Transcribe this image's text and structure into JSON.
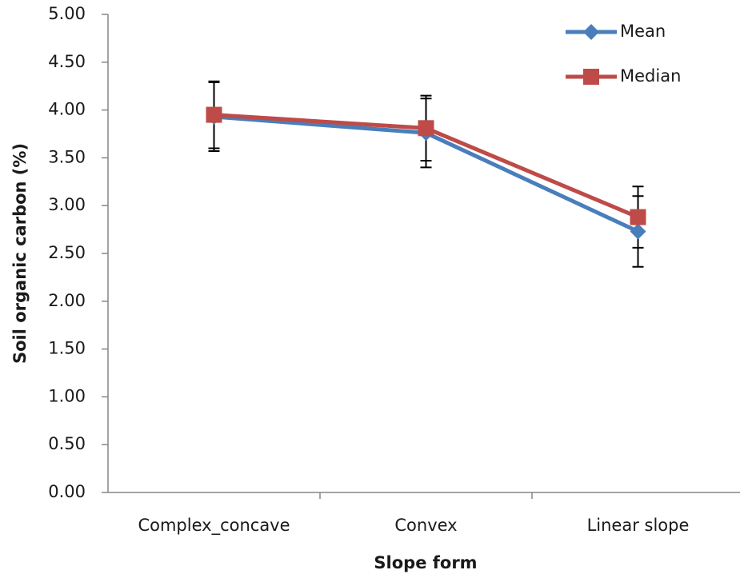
{
  "chart_data": {
    "type": "line",
    "x_label": "Slope form",
    "y_label": "Soil organic carbon (%)",
    "categories": [
      "Complex_concave",
      "Convex",
      "Linear slope"
    ],
    "series": [
      {
        "name": "Mean",
        "color": "#4a7ebb",
        "marker": "diamond",
        "values": [
          3.93,
          3.76,
          2.73
        ],
        "errors": [
          0.36,
          0.36,
          0.37
        ]
      },
      {
        "name": "Median",
        "color": "#be4b48",
        "marker": "square",
        "values": [
          3.95,
          3.81,
          2.88
        ],
        "errors": [
          0.35,
          0.34,
          0.32
        ]
      }
    ],
    "ylim": [
      0,
      5
    ],
    "yticks": [
      {
        "value": 0,
        "label": "0.00"
      },
      {
        "value": 0.5,
        "label": "0.50"
      },
      {
        "value": 1,
        "label": "1.00"
      },
      {
        "value": 1.5,
        "label": "1.50"
      },
      {
        "value": 2,
        "label": "2.00"
      },
      {
        "value": 2.5,
        "label": "2.50"
      },
      {
        "value": 3,
        "label": "3.00"
      },
      {
        "value": 3.5,
        "label": "3.50"
      },
      {
        "value": 4,
        "label": "4.00"
      },
      {
        "value": 4.5,
        "label": "4.50"
      },
      {
        "value": 5,
        "label": "5.00"
      }
    ],
    "grid": false,
    "legend": "top-right"
  }
}
